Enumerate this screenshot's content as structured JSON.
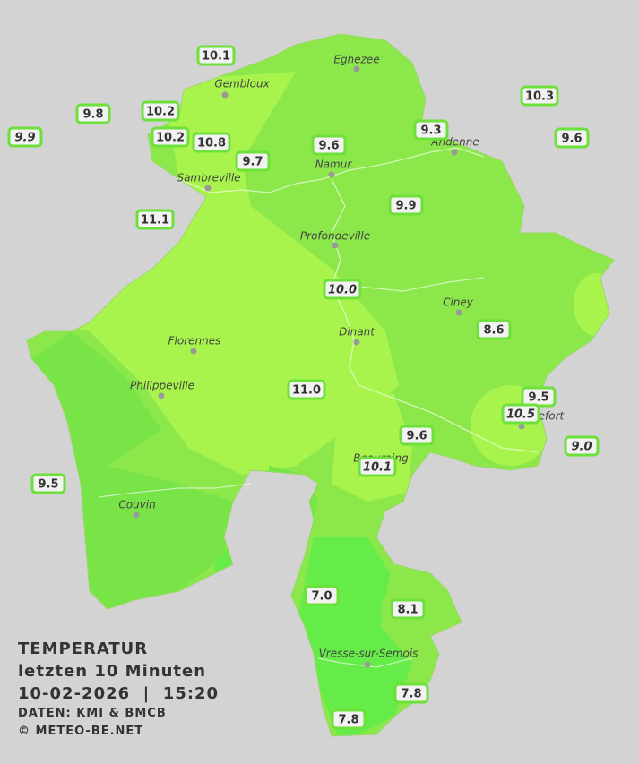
{
  "map": {
    "cities": [
      "Eghezee",
      "Gembloux",
      "Andenne",
      "Namur",
      "Sambreville",
      "Profondeville",
      "Ciney",
      "Dinant",
      "Florennes",
      "Philippeville",
      "Rochefort",
      "Beauraing",
      "Couvin",
      "Vresse-sur-Semois"
    ],
    "stations": [
      {
        "label": "10.1",
        "italic": false
      },
      {
        "label": "9.8",
        "italic": false
      },
      {
        "label": "10.2",
        "italic": false
      },
      {
        "label": "9.9",
        "italic": true
      },
      {
        "label": "10.2",
        "italic": false
      },
      {
        "label": "10.8",
        "italic": false
      },
      {
        "label": "9.7",
        "italic": false
      },
      {
        "label": "9.6",
        "italic": false
      },
      {
        "label": "9.3",
        "italic": false
      },
      {
        "label": "10.3",
        "italic": false
      },
      {
        "label": "9.6",
        "italic": false
      },
      {
        "label": "11.1",
        "italic": false
      },
      {
        "label": "9.9",
        "italic": false
      },
      {
        "label": "10.0",
        "italic": true
      },
      {
        "label": "8.6",
        "italic": false
      },
      {
        "label": "11.0",
        "italic": false
      },
      {
        "label": "9.5",
        "italic": false
      },
      {
        "label": "10.5",
        "italic": true
      },
      {
        "label": "9.0",
        "italic": true
      },
      {
        "label": "9.6",
        "italic": false
      },
      {
        "label": "10.1",
        "italic": true
      },
      {
        "label": "9.5",
        "italic": false
      },
      {
        "label": "7.0",
        "italic": false
      },
      {
        "label": "8.1",
        "italic": false
      },
      {
        "label": "7.8",
        "italic": false
      },
      {
        "label": "7.8",
        "italic": false
      }
    ]
  },
  "legend": {
    "title": "TEMPERATUR",
    "period": "letzten 10 Minuten",
    "datetime": "10-02-2026  |  15:20",
    "source": "DATEN: KMI & BMCB",
    "copyright": "© METEO-BE.NET"
  }
}
